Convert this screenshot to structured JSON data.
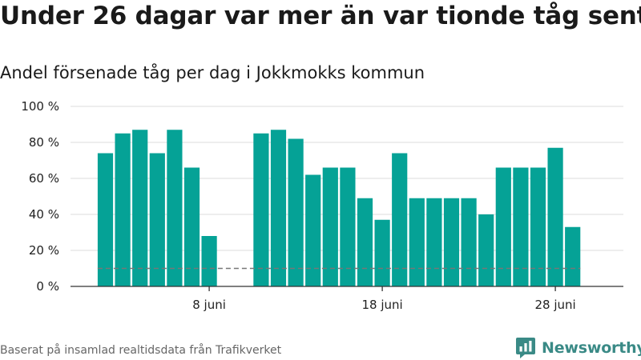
{
  "header": {
    "title": "Under 26 dagar var mer än var tionde tåg sent",
    "subtitle": "Andel försenade tåg per dag i Jokkmokks kommun"
  },
  "chart_data": {
    "type": "bar",
    "title": "Under 26 dagar var mer än var tionde tåg sent",
    "subtitle": "Andel försenade tåg per dag i Jokkmokks kommun",
    "xlabel": "",
    "ylabel": "",
    "x": [
      "2 juni",
      "3 juni",
      "4 juni",
      "5 juni",
      "6 juni",
      "7 juni",
      "8 juni",
      "9 juni",
      "10 juni",
      "11 juni",
      "12 juni",
      "13 juni",
      "14 juni",
      "15 juni",
      "16 juni",
      "17 juni",
      "18 juni",
      "19 juni",
      "20 juni",
      "21 juni",
      "22 juni",
      "23 juni",
      "24 juni",
      "25 juni",
      "26 juni",
      "27 juni",
      "28 juni",
      "29 juni"
    ],
    "values": [
      74,
      85,
      87,
      74,
      87,
      66,
      28,
      null,
      null,
      85,
      87,
      82,
      62,
      66,
      66,
      49,
      37,
      74,
      49,
      49,
      49,
      49,
      40,
      66,
      66,
      66,
      77,
      33
    ],
    "x_ticks": [
      "8 juni",
      "18 juni",
      "28 juni"
    ],
    "y_ticks": [
      "0 %",
      "20 %",
      "40 %",
      "60 %",
      "80 %",
      "100 %"
    ],
    "ylim": [
      0,
      100
    ],
    "reference_line": 10,
    "grid": true,
    "colors": {
      "bar": "#05a296",
      "reference": "#777777",
      "grid": "#e3e3e3",
      "axis": "#333333"
    }
  },
  "footer": {
    "source": "Baserat på insamlad realtidsdata från Trafikverket",
    "brand": "Newsworthy",
    "brand_icon": "bar-chart-icon",
    "brand_color": "#3a8a86"
  }
}
